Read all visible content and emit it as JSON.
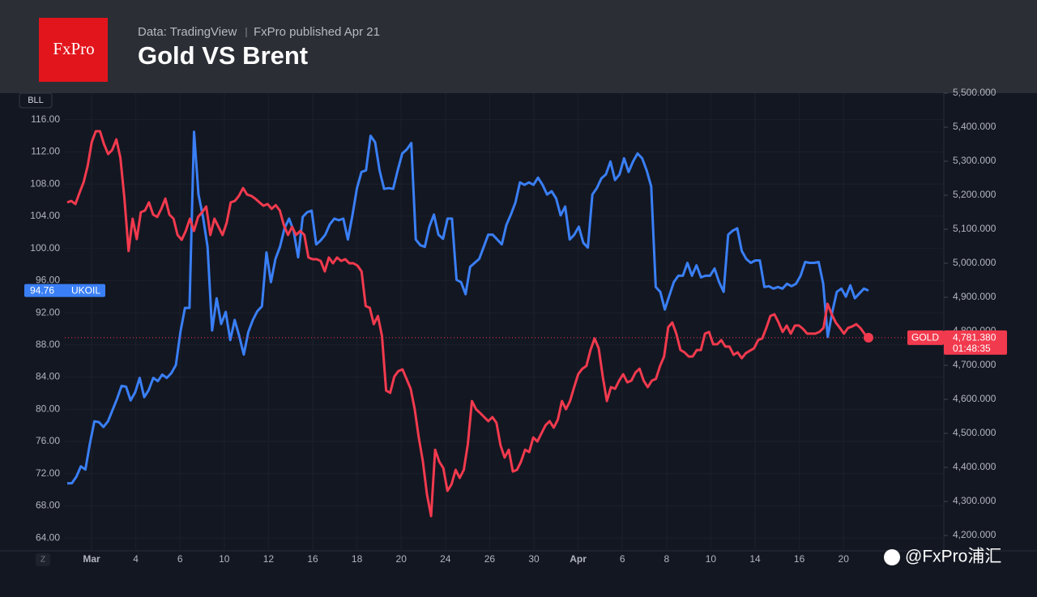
{
  "header": {
    "logo": "FxPro",
    "source": "Data: TradingView",
    "published": "FxPro published Apr 21"
  },
  "chart_data": {
    "type": "line",
    "title": "Gold VS Brent",
    "y_unit": "BLL",
    "zoom_button": "Z",
    "watermark": "@FxPro浦汇",
    "x_tick_labels": [
      "Mar",
      "4",
      "6",
      "10",
      "12",
      "16",
      "18",
      "20",
      "24",
      "26",
      "30",
      "Apr",
      "6",
      "8",
      "10",
      "14",
      "16",
      "20"
    ],
    "ylim": [
      62.4,
      119.3
    ],
    "yticks": [
      {
        "value": 64,
        "label": "64.00"
      },
      {
        "value": 68,
        "label": "68.00"
      },
      {
        "value": 72,
        "label": "72.00"
      },
      {
        "value": 76,
        "label": "76.00"
      },
      {
        "value": 80,
        "label": "80.00"
      },
      {
        "value": 84,
        "label": "84.00"
      },
      {
        "value": 88,
        "label": "88.00"
      },
      {
        "value": 92,
        "label": "92.00"
      },
      {
        "value": 96,
        "label": "96.00"
      },
      {
        "value": 100,
        "label": "100.00"
      },
      {
        "value": 104,
        "label": "104.00"
      },
      {
        "value": 108,
        "label": "108.00"
      },
      {
        "value": 112,
        "label": "112.00"
      },
      {
        "value": 116,
        "label": "116.00"
      }
    ],
    "y2lim": [
      4154.8,
      5500
    ],
    "y2ticks": [
      {
        "value": 4200,
        "label": "4,200.000"
      },
      {
        "value": 4300,
        "label": "4,300.000"
      },
      {
        "value": 4400,
        "label": "4,400.000"
      },
      {
        "value": 4500,
        "label": "4,500.000"
      },
      {
        "value": 4600,
        "label": "4,600.000"
      },
      {
        "value": 4700,
        "label": "4,700.000"
      },
      {
        "value": 4800,
        "label": "4,800.000"
      },
      {
        "value": 4900,
        "label": "4,900.000"
      },
      {
        "value": 5000,
        "label": "5,000.000"
      },
      {
        "value": 5100,
        "label": "5,100.000"
      },
      {
        "value": 5200,
        "label": "5,200.000"
      },
      {
        "value": 5300,
        "label": "5,300.000"
      },
      {
        "value": 5400,
        "label": "5,400.000"
      },
      {
        "value": 5500,
        "label": "5,500.000"
      }
    ],
    "grid": true,
    "series": [
      {
        "name": "UKOIL",
        "color": "#3a7ff6",
        "axis": "y",
        "price_label": "94.76",
        "values": [
          70.8,
          70.8,
          71.6,
          72.9,
          72.5,
          75.7,
          78.5,
          78.4,
          77.8,
          78.5,
          79.9,
          81.3,
          82.9,
          82.8,
          81.1,
          82.1,
          83.9,
          81.5,
          82.4,
          83.9,
          83.5,
          84.3,
          83.9,
          84.5,
          85.5,
          89.6,
          92.6,
          92.6,
          114.5,
          106.7,
          103.9,
          100.2,
          89.8,
          93.8,
          90.6,
          92.1,
          88.6,
          91.1,
          89.1,
          86.8,
          89.6,
          91.1,
          92.2,
          92.8,
          99.5,
          95.8,
          98.7,
          100.2,
          102.5,
          103.7,
          102.2,
          98.9,
          103.9,
          104.5,
          104.7,
          100.5,
          101.0,
          101.7,
          103.0,
          103.7,
          103.5,
          103.7,
          101.1,
          104.1,
          107.5,
          109.5,
          109.7,
          114.0,
          113.2,
          109.7,
          107.4,
          107.5,
          107.4,
          109.7,
          111.8,
          112.3,
          113.1,
          101.1,
          100.4,
          100.2,
          102.7,
          104.2,
          101.7,
          101.2,
          103.7,
          103.7,
          96.1,
          95.8,
          94.3,
          97.7,
          98.2,
          98.7,
          100.2,
          101.7,
          101.7,
          101.1,
          100.5,
          102.9,
          104.2,
          105.7,
          108.2,
          107.9,
          108.2,
          107.9,
          108.8,
          107.9,
          106.7,
          107.1,
          106.2,
          104.1,
          105.2,
          101.1,
          101.7,
          102.7,
          100.7,
          100.1,
          106.7,
          107.5,
          108.7,
          109.2,
          110.8,
          108.5,
          109.2,
          111.2,
          109.5,
          110.8,
          111.8,
          111.2,
          109.7,
          107.7,
          95.2,
          94.6,
          92.4,
          94.1,
          95.8,
          96.6,
          96.6,
          98.2,
          96.6,
          97.9,
          96.4,
          96.6,
          96.6,
          97.5,
          95.8,
          94.6,
          101.7,
          102.2,
          102.5,
          99.7,
          98.7,
          98.2,
          98.5,
          98.5,
          95.2,
          95.3,
          95.0,
          95.2,
          95.0,
          95.6,
          95.3,
          95.6,
          96.6,
          98.3,
          98.2,
          98.2,
          98.3,
          95.6,
          89.0,
          92.1,
          94.6,
          95.0,
          94.0,
          95.4,
          93.8,
          94.4,
          95.0,
          94.76
        ]
      },
      {
        "name": "GOLD",
        "color": "#f23a4e",
        "axis": "y2",
        "price_label": "4,781.380",
        "countdown": "01:48:35",
        "values": [
          5179,
          5183,
          5174,
          5207,
          5238,
          5286,
          5357,
          5388,
          5388,
          5350,
          5321,
          5333,
          5364,
          5310,
          5190,
          5036,
          5131,
          5071,
          5150,
          5155,
          5179,
          5143,
          5136,
          5160,
          5190,
          5143,
          5131,
          5083,
          5069,
          5095,
          5131,
          5095,
          5136,
          5150,
          5167,
          5083,
          5131,
          5107,
          5083,
          5119,
          5179,
          5183,
          5198,
          5221,
          5202,
          5198,
          5190,
          5179,
          5169,
          5174,
          5160,
          5171,
          5155,
          5112,
          5083,
          5107,
          5083,
          5095,
          5083,
          5017,
          5012,
          5012,
          5007,
          4976,
          5017,
          5000,
          5017,
          5007,
          5012,
          5000,
          5000,
          4993,
          4976,
          4874,
          4869,
          4821,
          4845,
          4786,
          4626,
          4619,
          4667,
          4683,
          4688,
          4660,
          4631,
          4571,
          4488,
          4417,
          4321,
          4257,
          4452,
          4417,
          4398,
          4331,
          4350,
          4393,
          4369,
          4393,
          4469,
          4595,
          4571,
          4560,
          4548,
          4536,
          4548,
          4531,
          4464,
          4429,
          4452,
          4388,
          4393,
          4417,
          4452,
          4445,
          4488,
          4476,
          4500,
          4524,
          4536,
          4517,
          4540,
          4595,
          4571,
          4595,
          4636,
          4674,
          4690,
          4698,
          4745,
          4779,
          4750,
          4667,
          4595,
          4636,
          4631,
          4655,
          4674,
          4650,
          4655,
          4679,
          4690,
          4655,
          4636,
          4655,
          4660,
          4698,
          4726,
          4812,
          4826,
          4793,
          4745,
          4738,
          4726,
          4726,
          4745,
          4745,
          4793,
          4798,
          4762,
          4762,
          4774,
          4755,
          4755,
          4731,
          4738,
          4721,
          4736,
          4743,
          4750,
          4774,
          4779,
          4810,
          4845,
          4850,
          4826,
          4798,
          4817,
          4793,
          4817,
          4817,
          4807,
          4793,
          4793,
          4793,
          4798,
          4810,
          4881,
          4850,
          4826,
          4810,
          4793,
          4810,
          4814,
          4821,
          4810,
          4793,
          4781.38
        ]
      }
    ]
  }
}
